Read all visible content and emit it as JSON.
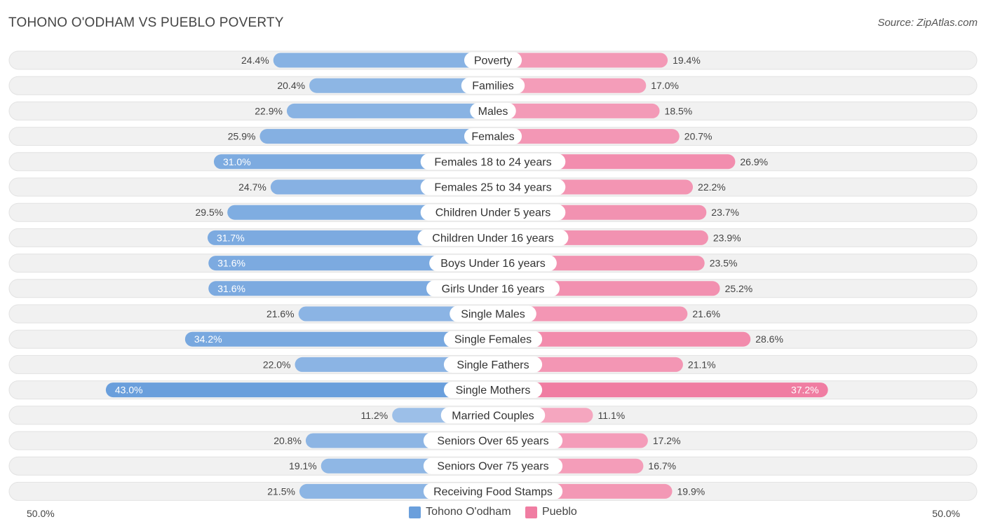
{
  "title": "TOHONO O'ODHAM VS PUEBLO POVERTY",
  "source": "Source: ZipAtlas.com",
  "colors": {
    "left": "#6a9fdc",
    "right": "#f07da2"
  },
  "chart_data": {
    "type": "bar",
    "orientation": "horizontal-diverging",
    "axis_max": 50.0,
    "axis_labels": {
      "left": "50.0%",
      "right": "50.0%"
    },
    "legend": [
      {
        "name": "Tohono O'odham",
        "color": "#6a9fdc"
      },
      {
        "name": "Pueblo",
        "color": "#f07da2"
      }
    ],
    "categories": [
      "Poverty",
      "Families",
      "Males",
      "Females",
      "Females 18 to 24 years",
      "Females 25 to 34 years",
      "Children Under 5 years",
      "Children Under 16 years",
      "Boys Under 16 years",
      "Girls Under 16 years",
      "Single Males",
      "Single Females",
      "Single Fathers",
      "Single Mothers",
      "Married Couples",
      "Seniors Over 65 years",
      "Seniors Over 75 years",
      "Receiving Food Stamps"
    ],
    "series": [
      {
        "name": "Tohono O'odham",
        "values": [
          24.4,
          20.4,
          22.9,
          25.9,
          31.0,
          24.7,
          29.5,
          31.7,
          31.6,
          31.6,
          21.6,
          34.2,
          22.0,
          43.0,
          11.2,
          20.8,
          19.1,
          21.5
        ]
      },
      {
        "name": "Pueblo",
        "values": [
          19.4,
          17.0,
          18.5,
          20.7,
          26.9,
          22.2,
          23.7,
          23.9,
          23.5,
          25.2,
          21.6,
          28.6,
          21.1,
          37.2,
          11.1,
          17.2,
          16.7,
          19.9
        ]
      }
    ]
  }
}
